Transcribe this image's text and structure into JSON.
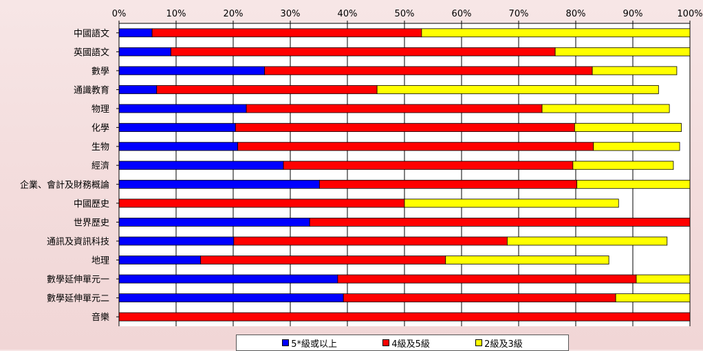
{
  "chart_data": {
    "type": "bar",
    "orientation": "horizontal",
    "stacked": true,
    "title": "",
    "xlabel": "",
    "ylabel": "",
    "xlim": [
      0,
      100
    ],
    "x_ticks": [
      "0%",
      "10%",
      "20%",
      "30%",
      "40%",
      "50%",
      "60%",
      "70%",
      "80%",
      "90%",
      "100%"
    ],
    "grid": "vertical",
    "legend_position": "bottom",
    "categories": [
      "中國語文",
      "英國語文",
      "數學",
      "通識教育",
      "物理",
      "化學",
      "生物",
      "經濟",
      "企業、會計及財務概論",
      "中國歷史",
      "世界歷史",
      "通訊及資訊科技",
      "地理",
      "數學延伸單元一",
      "數學延伸單元二",
      "音樂"
    ],
    "series": [
      {
        "name": "5*級或以上",
        "color": "#0000ff",
        "values": [
          5.8,
          9.1,
          25.5,
          6.6,
          22.3,
          20.4,
          20.8,
          28.8,
          35.1,
          0,
          33.4,
          20.1,
          14.3,
          38.3,
          39.3,
          0
        ]
      },
      {
        "name": "4級及5級",
        "color": "#ff0000",
        "values": [
          47.2,
          67.3,
          57.4,
          38.6,
          51.8,
          59.4,
          62.3,
          50.7,
          45.1,
          50.0,
          66.6,
          47.9,
          42.9,
          52.3,
          47.7,
          100.0
        ]
      },
      {
        "name": "2級及3級",
        "color": "#ffff00",
        "values": [
          47.0,
          23.6,
          14.8,
          49.3,
          22.3,
          18.7,
          15.1,
          17.6,
          19.8,
          37.5,
          0,
          28.0,
          28.6,
          9.4,
          13.0,
          0
        ]
      }
    ]
  }
}
